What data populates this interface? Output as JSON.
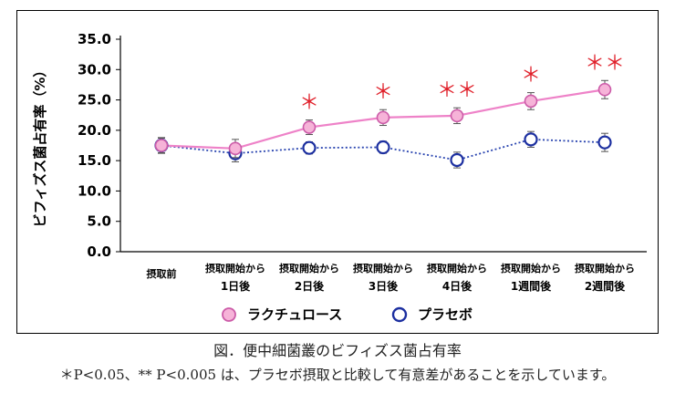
{
  "chart_data": {
    "type": "line",
    "ylabel": "ビフィズス菌占有率（%）",
    "ylim": [
      0,
      35
    ],
    "yticks": [
      "0.0",
      "5.0",
      "10.0",
      "15.0",
      "20.0",
      "25.0",
      "30.0",
      "35.0"
    ],
    "categories": [
      {
        "line1": "摂取前",
        "line2": ""
      },
      {
        "line1": "摂取開始から",
        "line2": "1日後"
      },
      {
        "line1": "摂取開始から",
        "line2": "2日後"
      },
      {
        "line1": "摂取開始から",
        "line2": "3日後"
      },
      {
        "line1": "摂取開始から",
        "line2": "4日後"
      },
      {
        "line1": "摂取開始から",
        "line2": "1週間後"
      },
      {
        "line1": "摂取開始から",
        "line2": "2週間後"
      }
    ],
    "series": [
      {
        "name": "ラクチュロース",
        "values": [
          17.5,
          17.0,
          20.5,
          22.1,
          22.4,
          24.8,
          26.7
        ],
        "errors": [
          1.2,
          1.5,
          1.2,
          1.3,
          1.3,
          1.4,
          1.5
        ],
        "line_color": "#ee82c8",
        "marker_fill": "#f6b3d8",
        "marker_stroke": "#cc5ba8",
        "line_style": "solid"
      },
      {
        "name": "プラセボ",
        "values": [
          17.5,
          16.2,
          17.1,
          17.2,
          15.1,
          18.5,
          18.0
        ],
        "errors": [
          1.3,
          1.4,
          1.0,
          1.0,
          1.3,
          1.3,
          1.5
        ],
        "line_color": "#2a45b0",
        "marker_fill": "#ffffff",
        "marker_stroke": "#1c2fa0",
        "line_style": "dotted"
      }
    ],
    "significance": [
      "",
      "",
      "＊",
      "＊",
      "＊＊",
      "＊",
      "＊＊"
    ],
    "significance_color": "#e0202a"
  },
  "caption": "図．便中細菌叢のビフィズス菌占有率",
  "footnote": "＊P<0.05、** P<0.005 は、プラセボ摂取と比較して有意差があることを示しています。"
}
